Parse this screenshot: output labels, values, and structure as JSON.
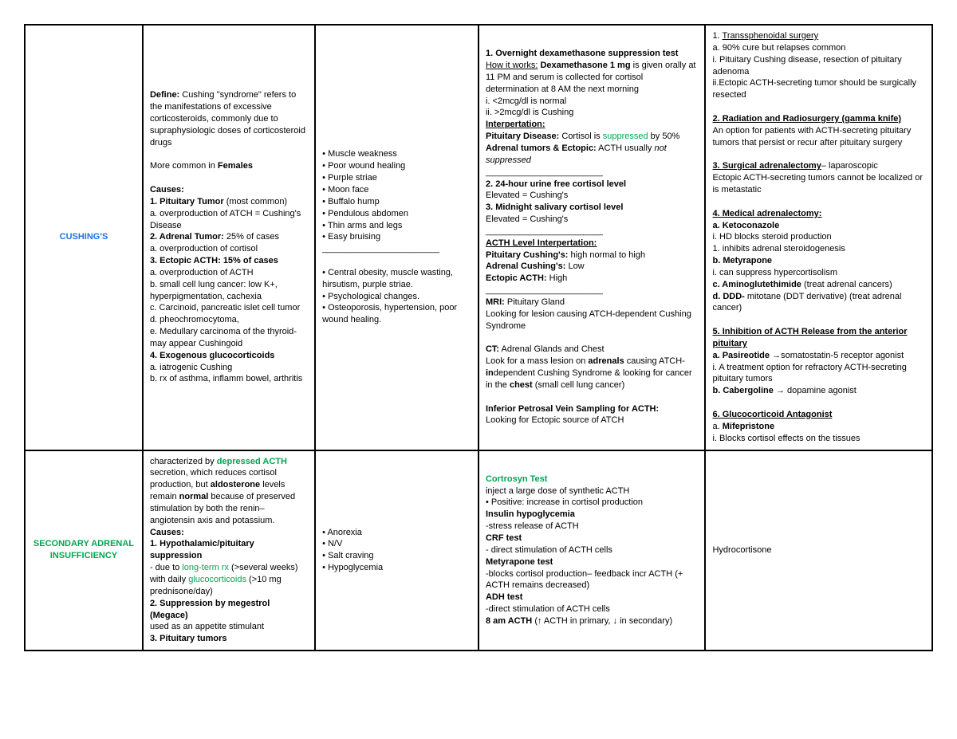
{
  "colors": {
    "blue": "#1a73e8",
    "green": "#00a651",
    "border": "#000000",
    "bg": "#ffffff",
    "text": "#000000"
  },
  "rows": [
    {
      "head_text": "CUSHING'S",
      "head_color": "blue",
      "c2_html": "<span class='b'>Define:</span> Cushing \"syndrome\" refers to the manifestations of excessive corticosteroids, commonly due to supraphysiologic doses of corticosteroid drugs<br><br>More common in <span class='b'>Females</span><br><br><span class='b'>Causes:</span><br><span class='b'>1. Pituitary Tumor</span> (most common)<br>a. overproduction of ATCH = Cushing's Disease<br><span class='b'>2. Adrenal Tumor:</span> 25% of cases<br>a. overproduction of cortisol<br><span class='b'>3. Ectopic ACTH: 15% of cases</span><br>a. overproduction of ACTH<br>b. small cell lung cancer: low K+, hyperpigmentation, cachexia<br>c. Carcinoid, pancreatic islet cell tumor<br>d. pheochromocytoma,<br>e. Medullary carcinoma of the thyroid- may appear Cushingoid<br><span class='b'>4. Exogenous glucocorticoids</span><br>a. iatrogenic Cushing<br>b. rx of asthma, inflamm bowel, arthritis",
      "c3_html": "• Muscle weakness<br>• Poor wound healing<br>• Purple striae<br>• Moon face<br>• Buffalo hump<br>• Pendulous abdomen<br>• Thin arms and legs<br>• Easy bruising<br>________________________<br><br>• Central obesity, muscle wasting, hirsutism, purple striae.<br>• Psychological changes.<br>• Osteoporosis, hypertension, poor wound healing.",
      "c4_html": "<span class='b'>1. Overnight dexamethasone suppression test</span><br><span class='u'>How it works:</span> <span class='b'>Dexamethasone 1 mg</span> is given orally at 11 PM and serum is collected for cortisol determination at 8 AM the next morning<br>i. &lt;2mcg/dl is normal<br>ii. &gt;2mcg/dl is Cushing<br><span class='b u'>Interpertation:</span><br><span class='b'>Pituitary Disease:</span> Cortisol is <span class='green'>suppressed</span> by 50%<br><span class='b'>Adrenal tumors &amp; Ectopic:</span> ACTH usually <span class='i'>not suppressed</span><br>________________________<br><span class='b'>2. 24-hour urine free cortisol level</span><br>Elevated = Cushing's<br><span class='b'>3. Midnight salivary cortisol level</span><br>Elevated = Cushing's<br>________________________<br><span class='b u'>ACTH Level Interpertation:</span><br><span class='b'>Pituitary Cushing's:</span> high normal to high<br><span class='b'>Adrenal Cushing's:</span> Low<br><span class='b'>Ectopic ACTH:</span> High<br>________________________<br><span class='b'>MRI:</span> Pituitary Gland<br>Looking for lesion causing ATCH-dependent Cushing Syndrome<br><br><span class='b'>CT:</span> Adrenal Glands and Chest<br>Look for a mass lesion on <span class='b'>adrenals</span> causing ATCH-<span class='b'>in</span>dependent Cushing Syndrome &amp; looking for cancer in the <span class='b'>chest</span> (small cell lung cancer)<br><br><span class='b'>Inferior Petrosal Vein Sampling for ACTH:</span><br>Looking for Ectopic source of ATCH",
      "c5_html": "1. <span class='u'>Transsphenoidal surgery</span><br>a. 90% cure but relapses common<br>i. Pituitary Cushing disease, resection of pituitary adenoma<br>ii.Ectopic ACTH-secreting tumor should be surgically resected<br><br><span class='b u'>2. Radiation and Radiosurgery (gamma knife)</span><br>An option for patients with ACTH-secreting pituitary tumors that persist or recur after pituitary surgery<br><br><span class='b u'>3. Surgical adrenalectomy</span>– laparoscopic<br>Ectopic ACTH-secreting tumors cannot be localized or is metastatic<br><br><span class='b u'>4. Medical adrenalectomy:</span><br><span class='b'>a. Ketoconazole</span><br>i. HD blocks steroid production<br>1. inhibits adrenal steroidogenesis<br><span class='b'>b. Metyrapone</span><br>i. can suppress hypercortisolism<br><span class='b'>c. Aminoglutethimide</span> (treat adrenal cancers)<br><span class='b'>d. DDD-</span> mitotane (DDT derivative) (treat adrenal cancer)<br><br><span class='b u'>5. Inhibition of ACTH Release from the anterior pituitary</span><br><span class='b'>a. Pasireotide</span> →somatostatin-5 receptor agonist<br>i. A treatment option for refractory ACTH-secreting pituitary tumors<br><span class='b'>b. Cabergoline</span> → dopamine agonist<br><br><span class='b u'>6. Glucocorticoid Antagonist</span><br>a. <span class='b'>Mifepristone</span><br>i. Blocks cortisol effects on the tissues"
    },
    {
      "head_text": "SECONDARY ADRENAL INSUFFICIENCY",
      "head_color": "green",
      "c2_html": "characterized by <span class='green b'>depressed ACTH</span> secretion, which reduces cortisol production, but <span class='b'>aldosterone</span> levels remain <span class='b'>normal</span> because of preserved stimulation by both the renin–angiotensin axis and potassium.<br><span class='b'>Causes:</span><br><span class='b'>1. Hypothalamic/pituitary suppression</span><br>- due to <span class='green'>long-term rx</span> (&gt;several weeks) with daily <span class='green'>glucocorticoids</span> (&gt;10 mg prednisone/day)<br><span class='b'>2. Suppression by megestrol (Megace)</span><br>used as an appetite stimulant<br><span class='b'>3. Pituitary tumors</span>",
      "c3_html": "• Anorexia<br>• N/V<br>• Salt craving<br>• Hypoglycemia",
      "c4_html": "<span class='green b'>Cortrosyn Test</span><br>inject a large dose of synthetic ACTH<br>• Positive: increase in cortisol production<br><span class='b'>Insulin hypoglycemia</span><br>-stress release of ACTH<br><span class='b'>CRF test</span><br>- direct stimulation of ACTH cells<br><span class='b'>Metyrapone test</span><br>-blocks cortisol production– feedback incr ACTH (+ ACTH remains decreased)<br><span class='b'>ADH test</span><br>-direct stimulation of ACTH cells<br><span class='b'>8 am ACTH</span> (↑ ACTH in primary, ↓ in secondary)",
      "c5_html": "Hydrocortisone"
    }
  ]
}
